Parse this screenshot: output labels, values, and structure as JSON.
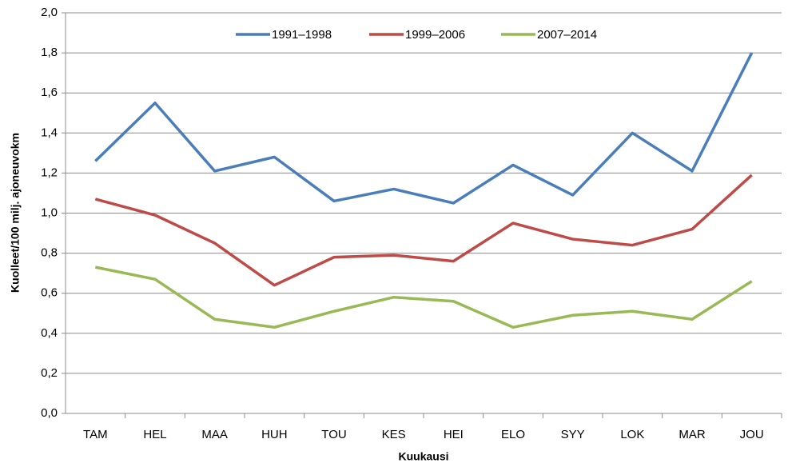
{
  "chart_data": {
    "type": "line",
    "x_label": "Kuukausi",
    "y_label": "Kuolleet/100 milj. ajoneuvokm",
    "categories": [
      "TAM",
      "HEL",
      "MAA",
      "HUH",
      "TOU",
      "KES",
      "HEI",
      "ELO",
      "SYY",
      "LOK",
      "MAR",
      "JOU"
    ],
    "series": [
      {
        "name": "1991–1998",
        "color": "#4a7ebb",
        "values": [
          1.26,
          1.55,
          1.21,
          1.28,
          1.06,
          1.12,
          1.05,
          1.24,
          1.09,
          1.4,
          1.21,
          1.8
        ]
      },
      {
        "name": "1999–2006",
        "color": "#be4b48",
        "values": [
          1.07,
          0.99,
          0.85,
          0.64,
          0.78,
          0.79,
          0.76,
          0.95,
          0.87,
          0.84,
          0.92,
          1.19
        ]
      },
      {
        "name": "2007–2014",
        "color": "#98b954",
        "values": [
          0.73,
          0.67,
          0.47,
          0.43,
          0.51,
          0.58,
          0.56,
          0.43,
          0.49,
          0.51,
          0.47,
          0.66
        ]
      }
    ],
    "ylim": [
      0,
      2
    ],
    "yticks": [
      {
        "value": 0,
        "label": "0,0"
      },
      {
        "value": 0.2,
        "label": "0,2"
      },
      {
        "value": 0.4,
        "label": "0,4"
      },
      {
        "value": 0.6,
        "label": "0,6"
      },
      {
        "value": 0.8,
        "label": "0,8"
      },
      {
        "value": 1.0,
        "label": "1,0"
      },
      {
        "value": 1.2,
        "label": "1,2"
      },
      {
        "value": 1.4,
        "label": "1,4"
      },
      {
        "value": 1.6,
        "label": "1,6"
      },
      {
        "value": 1.8,
        "label": "1,8"
      },
      {
        "value": 2.0,
        "label": "2,0"
      }
    ],
    "grid": true,
    "legend": "top"
  }
}
